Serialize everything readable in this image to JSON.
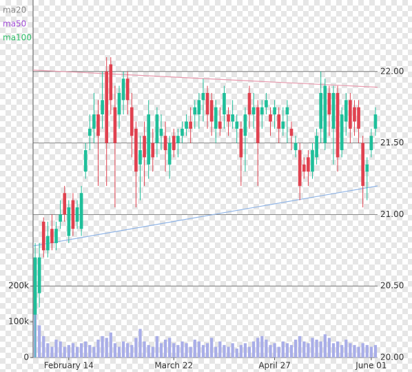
{
  "chart_data": {
    "type": "candlestick",
    "legend": [
      {
        "name": "ma20",
        "color": "#8a8a8a"
      },
      {
        "name": "ma50",
        "color": "#a34fd8"
      },
      {
        "name": "ma100",
        "color": "#2fbf6a"
      }
    ],
    "categories": [
      null,
      null,
      null,
      null,
      null,
      null,
      null,
      null,
      "February 14",
      null,
      null,
      null,
      null,
      null,
      null,
      null,
      null,
      null,
      null,
      null,
      null,
      null,
      null,
      null,
      null,
      null,
      null,
      null,
      null,
      null,
      null,
      null,
      null,
      "March 22",
      null,
      null,
      null,
      null,
      null,
      null,
      null,
      null,
      null,
      null,
      null,
      null,
      null,
      null,
      null,
      null,
      null,
      null,
      null,
      null,
      null,
      null,
      null,
      "April 27",
      null,
      null,
      null,
      null,
      null,
      null,
      null,
      null,
      null,
      null,
      null,
      null,
      null,
      null,
      null,
      null,
      null,
      null,
      null,
      null,
      null,
      null,
      "June 01",
      null
    ],
    "open": [
      20.3,
      20.45,
      20.95,
      20.75,
      20.9,
      20.8,
      20.95,
      21.15,
      20.85,
      21.1,
      20.95,
      20.9,
      21.3,
      21.55,
      21.6,
      21.7,
      21.7,
      22.0,
      22.05,
      21.75,
      21.7,
      21.8,
      21.95,
      21.75,
      21.6,
      21.35,
      21.55,
      21.35,
      21.5,
      21.5,
      21.55,
      21.55,
      21.35,
      21.55,
      21.5,
      21.55,
      21.6,
      21.65,
      21.7,
      21.7,
      21.8,
      21.85,
      21.8,
      21.6,
      21.65,
      21.7,
      21.7,
      21.65,
      21.6,
      21.6,
      21.55,
      21.85,
      21.7,
      21.75,
      21.7,
      21.75,
      21.7,
      21.7,
      21.7,
      21.6,
      21.7,
      21.6,
      21.45,
      21.45,
      21.35,
      21.4,
      21.3,
      21.4,
      21.6,
      21.5,
      21.85,
      21.6,
      21.85,
      21.45,
      21.65,
      21.8,
      21.75,
      21.75,
      21.5,
      21.3,
      21.45,
      21.6
    ],
    "high": [
      20.8,
      20.8,
      20.98,
      20.95,
      21.0,
      20.95,
      21.1,
      21.2,
      21.1,
      21.15,
      21.1,
      21.2,
      21.5,
      21.7,
      21.85,
      21.8,
      22.0,
      22.1,
      22.1,
      21.9,
      21.9,
      22.0,
      22.0,
      21.85,
      21.65,
      21.55,
      21.65,
      21.8,
      21.6,
      21.75,
      21.7,
      21.65,
      21.55,
      21.6,
      21.6,
      21.65,
      21.7,
      21.75,
      21.8,
      21.85,
      21.95,
      21.9,
      21.85,
      21.8,
      21.75,
      21.9,
      21.75,
      21.8,
      21.7,
      21.65,
      21.75,
      21.9,
      21.85,
      21.8,
      21.8,
      21.85,
      21.75,
      21.8,
      21.75,
      21.75,
      21.8,
      21.65,
      21.55,
      21.5,
      21.4,
      21.45,
      21.5,
      21.6,
      22.0,
      21.95,
      21.9,
      21.9,
      21.9,
      21.75,
      21.85,
      21.85,
      21.8,
      21.8,
      21.55,
      21.4,
      21.6,
      21.75
    ],
    "low": [
      20.0,
      20.35,
      20.7,
      20.7,
      20.75,
      20.75,
      20.9,
      20.95,
      20.8,
      20.85,
      20.9,
      20.85,
      21.25,
      21.45,
      21.5,
      21.2,
      21.6,
      21.2,
      21.7,
      21.05,
      21.6,
      21.7,
      21.7,
      21.4,
      21.05,
      21.1,
      21.2,
      21.25,
      21.3,
      21.4,
      21.45,
      21.3,
      21.25,
      21.4,
      21.4,
      21.5,
      21.55,
      21.5,
      21.6,
      21.6,
      21.65,
      21.6,
      21.55,
      21.5,
      21.55,
      21.6,
      21.55,
      21.6,
      21.5,
      21.2,
      21.3,
      21.6,
      21.6,
      21.2,
      21.6,
      21.7,
      21.55,
      21.6,
      21.5,
      21.55,
      21.5,
      21.45,
      21.4,
      21.1,
      21.25,
      21.2,
      21.25,
      21.35,
      21.5,
      21.45,
      21.55,
      21.35,
      21.3,
      21.4,
      21.55,
      21.5,
      21.55,
      21.5,
      21.05,
      21.1,
      21.4,
      21.55
    ],
    "close": [
      20.7,
      20.7,
      20.75,
      20.85,
      20.8,
      20.9,
      21.0,
      21.0,
      21.05,
      20.9,
      21.05,
      21.15,
      21.45,
      21.6,
      21.7,
      21.55,
      21.8,
      21.5,
      21.8,
      21.5,
      21.85,
      21.95,
      21.8,
      21.55,
      21.3,
      21.45,
      21.4,
      21.7,
      21.4,
      21.7,
      21.6,
      21.45,
      21.5,
      21.45,
      21.55,
      21.6,
      21.65,
      21.6,
      21.75,
      21.8,
      21.85,
      21.7,
      21.65,
      21.75,
      21.6,
      21.85,
      21.65,
      21.7,
      21.65,
      21.4,
      21.7,
      21.7,
      21.75,
      21.5,
      21.75,
      21.8,
      21.65,
      21.75,
      21.6,
      21.65,
      21.75,
      21.55,
      21.5,
      21.2,
      21.3,
      21.3,
      21.45,
      21.55,
      21.85,
      21.9,
      21.7,
      21.85,
      21.4,
      21.7,
      21.8,
      21.6,
      21.65,
      21.6,
      21.2,
      21.35,
      21.55,
      21.7
    ],
    "volume": [
      150000,
      90000,
      60000,
      40000,
      30000,
      50000,
      45000,
      30000,
      35000,
      40000,
      30000,
      40000,
      45000,
      35000,
      30000,
      50000,
      60000,
      55000,
      70000,
      40000,
      30000,
      45000,
      40000,
      35000,
      55000,
      80000,
      45000,
      35000,
      30000,
      60000,
      40000,
      50000,
      55000,
      40000,
      35000,
      45000,
      40000,
      30000,
      50000,
      45000,
      35000,
      40000,
      55000,
      30000,
      45000,
      35000,
      30000,
      40000,
      25000,
      35000,
      40000,
      30000,
      45000,
      55000,
      60000,
      50000,
      35000,
      40000,
      30000,
      45000,
      40000,
      35000,
      50000,
      60000,
      45000,
      40000,
      55000,
      50000,
      45000,
      65000,
      55000,
      40000,
      45000,
      35000,
      50000,
      40000,
      35000,
      30000,
      40000,
      35000,
      30000,
      35000
    ],
    "up_color": "#1fbf9a",
    "down_color": "#e0414f",
    "volume_color": "#a9aee8",
    "trendlines": [
      {
        "color": "#e89aae",
        "values": [
          22.01,
          21.89
        ]
      },
      {
        "color": "#8fb4e6",
        "values": [
          20.78,
          21.2
        ]
      }
    ],
    "ylim": [
      20,
      22.5
    ],
    "yticks": [
      {
        "value": 20,
        "label": "20.00"
      },
      {
        "value": 20.5,
        "label": "20.50"
      },
      {
        "value": 21,
        "label": "21.00"
      },
      {
        "value": 21.5,
        "label": "21.50"
      },
      {
        "value": 22,
        "label": "22.00"
      }
    ],
    "y2lim": [
      0,
      1000000
    ],
    "y2ticks": [
      0,
      {
        "value": 100000,
        "label": "100k"
      },
      {
        "value": 200000,
        "label": "200k"
      }
    ],
    "grid": true
  }
}
